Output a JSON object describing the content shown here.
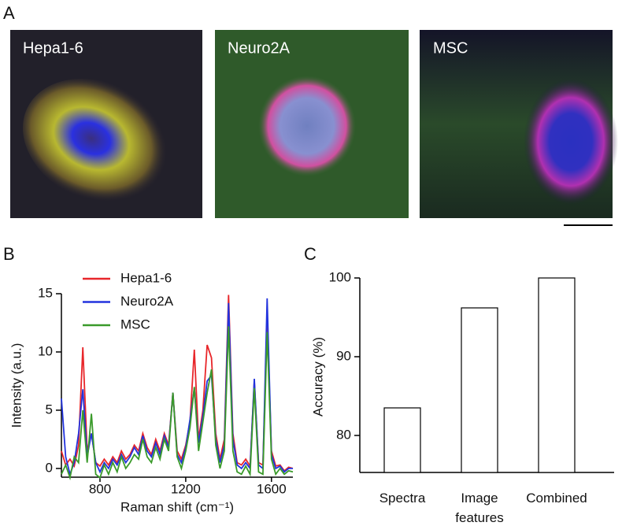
{
  "panel_letters": [
    "A",
    "B",
    "C"
  ],
  "images": [
    {
      "label": "Hepa1-6"
    },
    {
      "label": "Neuro2A"
    },
    {
      "label": "MSC"
    }
  ],
  "chart_data": [
    {
      "type": "line",
      "xlabel": "Raman shift (cm⁻¹)",
      "ylabel": "Intensity (a.u.)",
      "x": [
        620,
        640,
        660,
        680,
        700,
        720,
        740,
        760,
        780,
        800,
        820,
        840,
        860,
        880,
        900,
        920,
        940,
        960,
        980,
        1000,
        1020,
        1040,
        1060,
        1080,
        1100,
        1120,
        1140,
        1160,
        1180,
        1200,
        1220,
        1240,
        1260,
        1280,
        1300,
        1320,
        1340,
        1360,
        1380,
        1400,
        1420,
        1440,
        1460,
        1480,
        1500,
        1520,
        1540,
        1560,
        1580,
        1600,
        1620,
        1640,
        1660,
        1680,
        1700
      ],
      "series": [
        {
          "name": "Hepa1-6",
          "color": "#e8262a",
          "values": [
            1.5,
            0.3,
            0.8,
            0.2,
            2,
            10.4,
            1.5,
            3,
            0.5,
            0.2,
            0.8,
            0.3,
            1,
            0.5,
            1.5,
            0.8,
            1.2,
            2,
            1.5,
            3,
            1.8,
            1.2,
            2.5,
            1.5,
            3,
            2,
            6.5,
            1.5,
            0.8,
            2,
            4,
            10.2,
            2.5,
            5,
            10.6,
            9.5,
            3,
            0.8,
            2.5,
            14.9,
            3,
            0.5,
            0.3,
            0.8,
            0.2,
            7.5,
            0.5,
            0.3,
            12.6,
            1.5,
            0.2,
            0.3,
            -0.2,
            0.1,
            0
          ]
        },
        {
          "name": "Neuro2A",
          "color": "#2233dd",
          "values": [
            6,
            1,
            -0.5,
            0.5,
            3,
            6.8,
            1,
            3,
            0.5,
            -0.3,
            0.5,
            0,
            0.8,
            0.3,
            1.2,
            0.5,
            1,
            1.8,
            1.2,
            2.8,
            1.5,
            1,
            2.2,
            1.2,
            2.8,
            1.8,
            6.5,
            1.2,
            0.5,
            1.8,
            4.2,
            6.9,
            2.2,
            4.5,
            7.5,
            8,
            2.5,
            0.5,
            2,
            14.2,
            2.5,
            0.3,
            0,
            0.5,
            0,
            7.7,
            0.3,
            0,
            14.6,
            1.2,
            0,
            0.2,
            -0.3,
            0,
            0
          ]
        },
        {
          "name": "MSC",
          "color": "#3a9a2a",
          "values": [
            -0.5,
            0.3,
            -0.8,
            1,
            0.5,
            5,
            0.5,
            4.7,
            -0.5,
            -0.8,
            0.3,
            -0.5,
            0.5,
            -0.3,
            1,
            0,
            0.5,
            1.2,
            0.8,
            2.5,
            1,
            0.5,
            1.8,
            0.8,
            2.5,
            1.5,
            6.5,
            1,
            0,
            1.5,
            3.5,
            7,
            1.5,
            4,
            6.5,
            8.5,
            2,
            0,
            1.5,
            12.2,
            1.5,
            -0.3,
            -0.5,
            0.2,
            -0.5,
            6.9,
            -0.3,
            -0.5,
            11.7,
            0.8,
            -0.5,
            0,
            -0.5,
            -0.2,
            -0.3
          ]
        }
      ],
      "xlim": [
        620,
        1700
      ],
      "xticks": [
        800,
        1200,
        1600
      ],
      "ylim": [
        -0.75,
        15
      ],
      "yticks": [
        0,
        5,
        10,
        15
      ],
      "legend": "upper-left"
    },
    {
      "type": "bar",
      "ylabel": "Accuracy (%)",
      "categories": [
        "Spectra",
        "Image features",
        "Combined"
      ],
      "values": [
        83.5,
        96.2,
        100
      ],
      "color": "#ffffff",
      "ylim": [
        75.3,
        100
      ],
      "yticks": [
        80,
        90,
        100
      ]
    }
  ]
}
